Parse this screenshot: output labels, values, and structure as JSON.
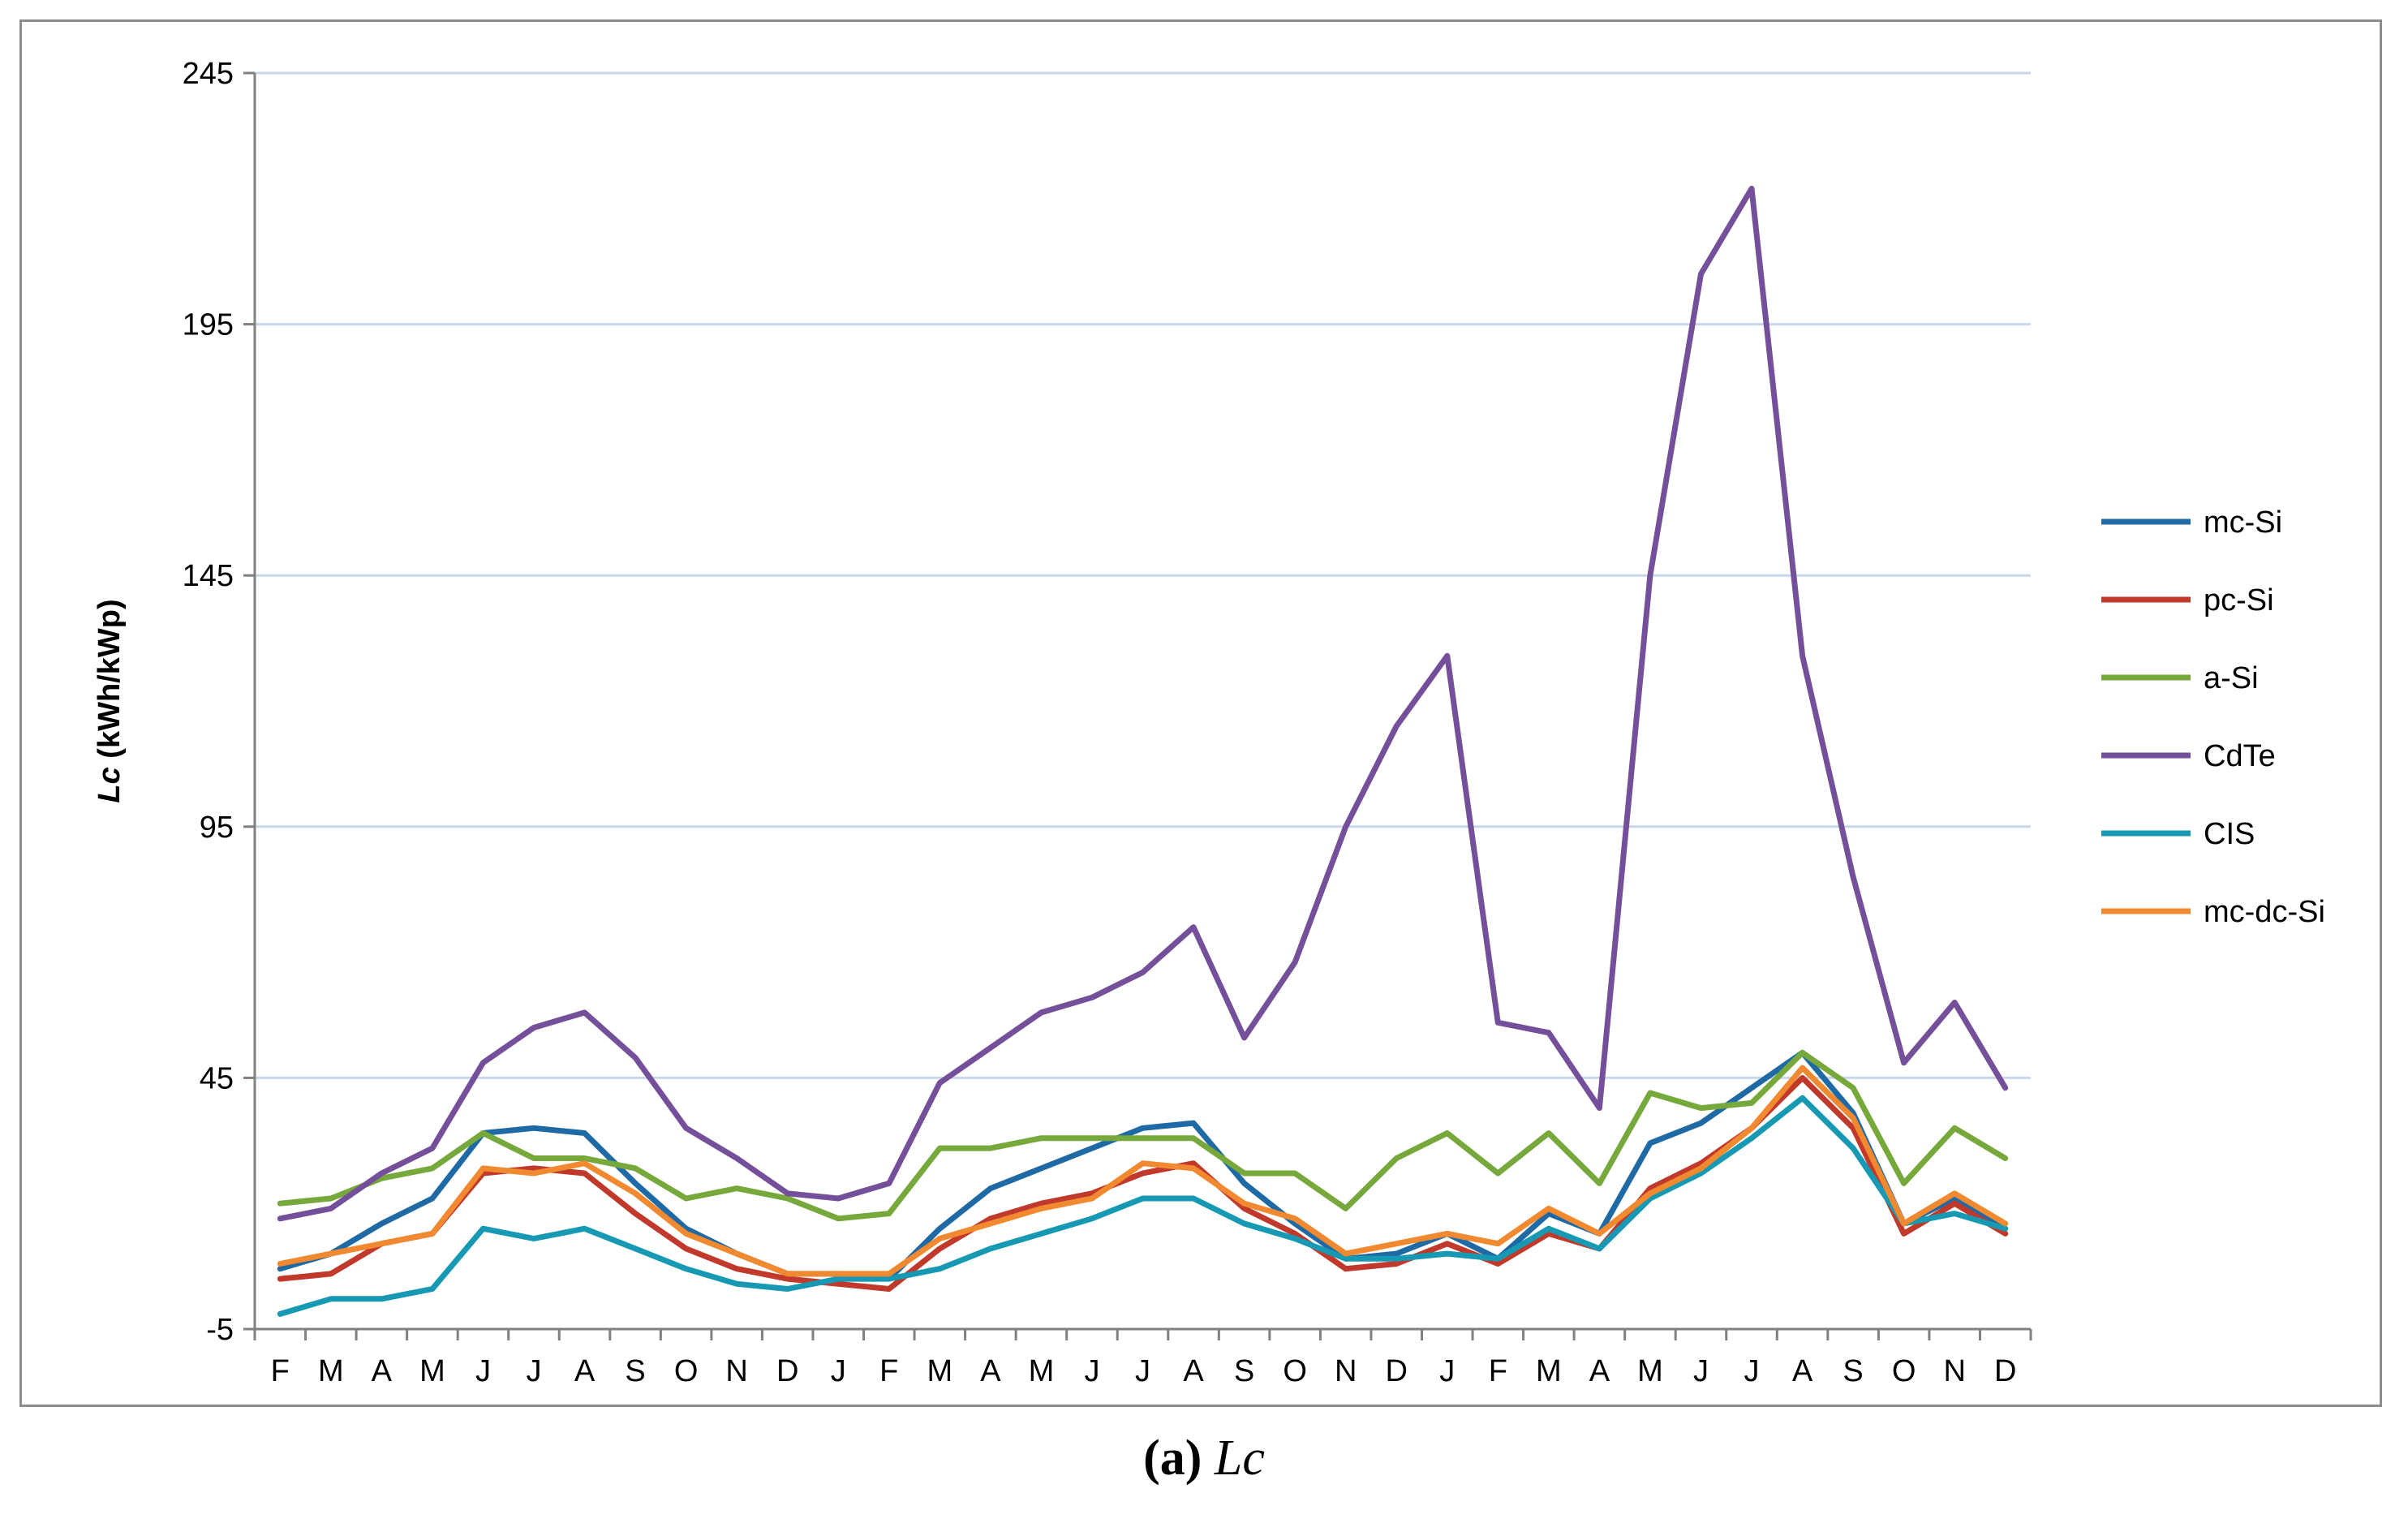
{
  "caption": {
    "open": "(",
    "letter": "a",
    "close": ")",
    "text": "Lc"
  },
  "chart_data": {
    "type": "line",
    "ylabel_italic": "Lc",
    "ylabel_rest": " (kWh/kWp)",
    "ylim": [
      -5,
      245
    ],
    "yticks": [
      -5,
      45,
      95,
      145,
      195,
      245
    ],
    "grid": true,
    "legend_position": "right",
    "categories": [
      "F",
      "M",
      "A",
      "M",
      "J",
      "J",
      "A",
      "S",
      "O",
      "N",
      "D",
      "J",
      "F",
      "M",
      "A",
      "M",
      "J",
      "J",
      "A",
      "S",
      "O",
      "N",
      "D",
      "J",
      "F",
      "M",
      "A",
      "M",
      "J",
      "J",
      "A",
      "S",
      "O",
      "N",
      "D"
    ],
    "series": [
      {
        "name": "mc-Si",
        "color": "#1f6aa5",
        "values": [
          7,
          10,
          16,
          21,
          34,
          35,
          34,
          24,
          15,
          10,
          6,
          6,
          5,
          15,
          23,
          27,
          31,
          35,
          36,
          24,
          16,
          9,
          10,
          14,
          9,
          18,
          14,
          32,
          36,
          43,
          50,
          38,
          16,
          21,
          15
        ]
      },
      {
        "name": "pc-Si",
        "color": "#c0392b",
        "values": [
          5,
          6,
          12,
          14,
          26,
          27,
          26,
          18,
          11,
          7,
          5,
          4,
          3,
          11,
          17,
          20,
          22,
          26,
          28,
          19,
          14,
          7,
          8,
          12,
          8,
          14,
          11,
          23,
          28,
          35,
          45,
          35,
          14,
          20,
          14
        ]
      },
      {
        "name": "a-Si",
        "color": "#77a83c",
        "values": [
          20,
          21,
          25,
          27,
          34,
          29,
          29,
          27,
          21,
          23,
          21,
          17,
          18,
          31,
          31,
          33,
          33,
          33,
          33,
          26,
          26,
          19,
          29,
          34,
          26,
          34,
          24,
          42,
          39,
          40,
          50,
          43,
          24,
          35,
          29
        ]
      },
      {
        "name": "CdTe",
        "color": "#75509a",
        "values": [
          17,
          19,
          26,
          31,
          48,
          55,
          58,
          49,
          35,
          29,
          22,
          21,
          24,
          44,
          51,
          58,
          61,
          66,
          75,
          53,
          68,
          95,
          115,
          129,
          56,
          54,
          39,
          145,
          205,
          222,
          129,
          85,
          48,
          60,
          43
        ]
      },
      {
        "name": "CIS",
        "color": "#1799b4",
        "values": [
          -2,
          1,
          1,
          3,
          15,
          13,
          15,
          11,
          7,
          4,
          3,
          5,
          5,
          7,
          11,
          14,
          17,
          21,
          21,
          16,
          13,
          9,
          9,
          10,
          9,
          15,
          11,
          21,
          26,
          33,
          41,
          31,
          16,
          18,
          15
        ]
      },
      {
        "name": "mc-dc-Si",
        "color": "#f0892f",
        "values": [
          8,
          10,
          12,
          14,
          27,
          26,
          28,
          22,
          14,
          10,
          6,
          6,
          6,
          13,
          16,
          19,
          21,
          28,
          27,
          20,
          17,
          10,
          12,
          14,
          12,
          19,
          14,
          22,
          27,
          35,
          47,
          37,
          16,
          22,
          16
        ]
      }
    ]
  }
}
